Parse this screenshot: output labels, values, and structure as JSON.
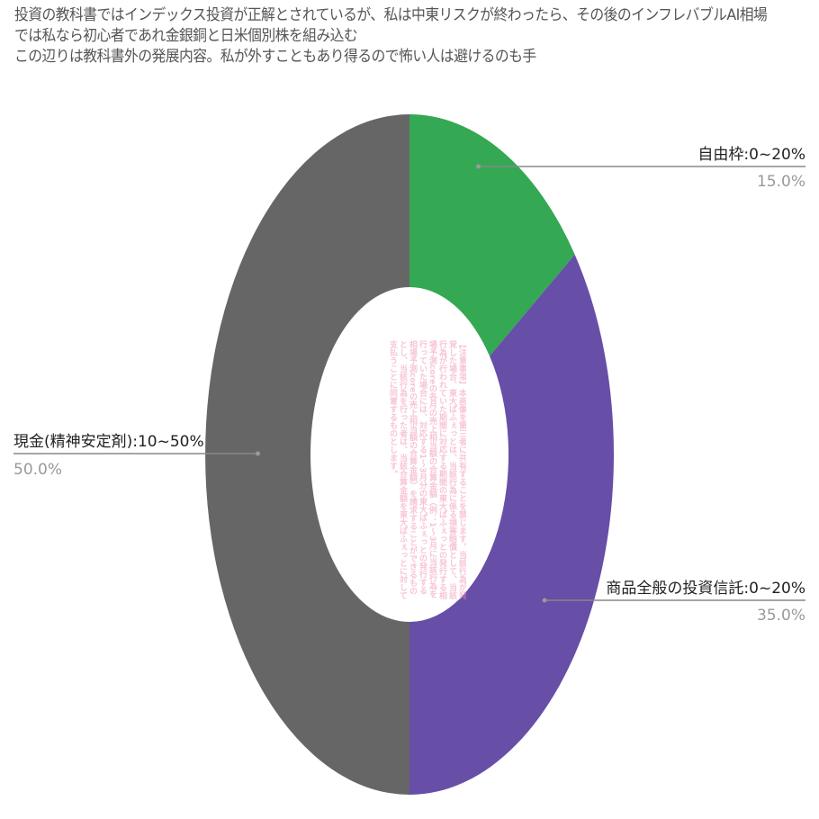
{
  "title_lines": [
    "投資の教科書ではインデックス投資が正解とされているが、私は中東リスクが終わったら、その後のインフレバブルAI相場",
    "では私なら初心者であれ金銀銅と日米個別株を組み込む",
    "この辺りは教科書外の発展内容。私が外すこともあり得るので怖い人は避けるのも手"
  ],
  "watermark": "【注意事項】本画像を第三者に共有することを禁じます。当該行為が発覚した場合、東大ぱふぇっとは、当該行為に係る損害賠償として、当該行為が行われていた期間に対応する期間の東大ぱふぇっとの発行する相場予測coreの各月の売上相当額の合算金額（例：1〜3月に当該行為を行っていた場合には、対応する1〜3月分の東大ぱふぇっとの発行する相場予測coreの売上相当額の合算金額）を請求することができるものとし、当該行為を行った者は、当該合算金額を東大ぱふぇっとに対して支払うことに同意するものとします。",
  "chart_data": {
    "type": "pie",
    "donut": true,
    "start": "top, clockwise",
    "slices": [
      {
        "label": "自由枠:0~20%",
        "value": 15.0,
        "percent_label": "15.0%",
        "color": "#34a853"
      },
      {
        "label": "商品全般の投資信託:0~20%",
        "value": 35.0,
        "percent_label": "35.0%",
        "color": "#674ea7"
      },
      {
        "label": "現金(精神安定剤):10~50%",
        "value": 50.0,
        "percent_label": "50.0%",
        "color": "#666666"
      }
    ]
  }
}
